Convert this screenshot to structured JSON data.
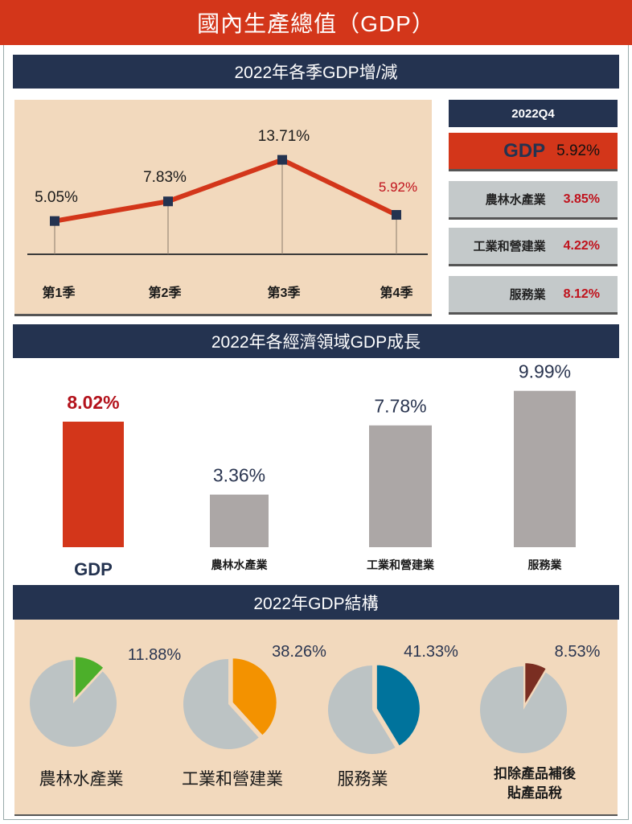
{
  "title": "國內生產總值（GDP）",
  "sections": {
    "quarterly": "2022年各季GDP增/減",
    "sectors": "2022年各經濟領域GDP成長",
    "structure": "2022年GDP結構"
  },
  "q4_panel": {
    "header": "2022Q4",
    "gdp_label": "GDP",
    "gdp_value": "5.92%",
    "items": [
      {
        "label": "農林水產業",
        "value": "3.85%"
      },
      {
        "label": "工業和營建業",
        "value": "4.22%"
      },
      {
        "label": "服務業",
        "value": "8.12%"
      }
    ]
  },
  "chart_data": [
    {
      "type": "line",
      "title": "2022年各季GDP增/減",
      "categories": [
        "第1季",
        "第2季",
        "第3季",
        "第4季"
      ],
      "values": [
        5.05,
        7.83,
        13.71,
        5.92
      ],
      "labels": [
        "5.05%",
        "7.83%",
        "13.71%",
        "5.92%"
      ],
      "line_color": "#d3361a",
      "highlight_last_color": "#c0121c",
      "grid": false
    },
    {
      "type": "bar",
      "title": "2022年各經濟領域GDP成長",
      "categories": [
        "GDP",
        "農林水產業",
        "工業和營建業",
        "服務業"
      ],
      "values": [
        8.02,
        3.36,
        7.78,
        9.99
      ],
      "labels": [
        "8.02%",
        "3.36%",
        "7.78%",
        "9.99%"
      ],
      "colors": [
        "#d3361a",
        "#aca7a6",
        "#aca7a6",
        "#aca7a6"
      ],
      "ylim": [
        0,
        10
      ],
      "grid": false
    },
    {
      "type": "pie",
      "title": "2022年GDP結構",
      "categories": [
        "農林水產業",
        "工業和營建業",
        "服務業",
        "扣除產品補後貼產品稅"
      ],
      "display_labels": [
        [
          "農林水產業"
        ],
        [
          "工業和營建業"
        ],
        [
          "服務業"
        ],
        [
          "扣除產品補後",
          "貼產品稅"
        ]
      ],
      "values": [
        11.88,
        38.26,
        41.33,
        8.53
      ],
      "labels": [
        "11.88%",
        "38.26%",
        "41.33%",
        "8.53%"
      ],
      "colors": [
        "#4caf2a",
        "#f39200",
        "#00739c",
        "#7a2e22"
      ],
      "rest_color": "#bcc3c4"
    }
  ]
}
